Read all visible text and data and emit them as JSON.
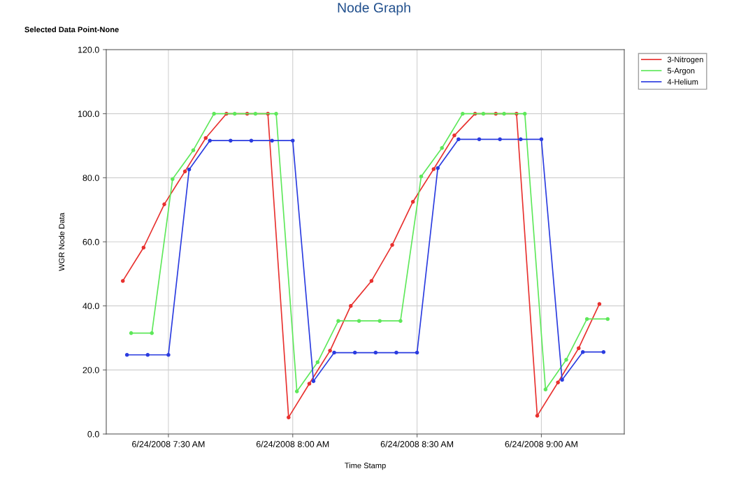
{
  "chart_data": {
    "type": "line",
    "title": "Node Graph",
    "annotations": [
      "Selected Data Point-None"
    ],
    "xlabel": "Time Stamp",
    "ylabel": "WGR Node Data",
    "xlim": [
      "2008-06-24T07:15",
      "2008-06-24T09:20"
    ],
    "xticks": [
      {
        "value": "2008-06-24T07:30",
        "label": "6/24/2008 7:30 AM"
      },
      {
        "value": "2008-06-24T08:00",
        "label": "6/24/2008 8:00 AM"
      },
      {
        "value": "2008-06-24T08:30",
        "label": "6/24/2008 8:30 AM"
      },
      {
        "value": "2008-06-24T09:00",
        "label": "6/24/2008 9:00 AM"
      }
    ],
    "ylim": [
      0,
      120
    ],
    "yticks": [
      {
        "value": 0,
        "label": "0.0"
      },
      {
        "value": 20,
        "label": "20.0"
      },
      {
        "value": 40,
        "label": "40.0"
      },
      {
        "value": 60,
        "label": "60.0"
      },
      {
        "value": 80,
        "label": "80.0"
      },
      {
        "value": 100,
        "label": "100.0"
      },
      {
        "value": 120,
        "label": "120.0"
      }
    ],
    "grid": true,
    "legend": "top right",
    "marker": "circle",
    "line_style": "solid",
    "series": [
      {
        "name": "3-Nitrogen",
        "color": "#e8312f",
        "x": [
          "2008-06-24T07:19",
          "2008-06-24T07:24",
          "2008-06-24T07:29",
          "2008-06-24T07:34",
          "2008-06-24T07:39",
          "2008-06-24T07:44",
          "2008-06-24T07:49",
          "2008-06-24T07:54",
          "2008-06-24T07:59",
          "2008-06-24T08:04",
          "2008-06-24T08:09",
          "2008-06-24T08:14",
          "2008-06-24T08:19",
          "2008-06-24T08:24",
          "2008-06-24T08:29",
          "2008-06-24T08:34",
          "2008-06-24T08:39",
          "2008-06-24T08:44",
          "2008-06-24T08:49",
          "2008-06-24T08:54",
          "2008-06-24T08:59",
          "2008-06-24T09:04",
          "2008-06-24T09:09",
          "2008-06-24T09:14"
        ],
        "values": [
          47.8,
          58.2,
          71.7,
          82,
          92.4,
          100,
          100,
          100,
          5.2,
          15.7,
          26,
          40,
          47.8,
          59,
          72.5,
          82.7,
          93.2,
          100,
          100,
          100,
          5.7,
          16.1,
          26.8,
          40.6
        ]
      },
      {
        "name": "5-Argon",
        "color": "#5ee85a",
        "x": [
          "2008-06-24T07:21",
          "2008-06-24T07:26",
          "2008-06-24T07:31",
          "2008-06-24T07:36",
          "2008-06-24T07:41",
          "2008-06-24T07:46",
          "2008-06-24T07:51",
          "2008-06-24T07:56",
          "2008-06-24T08:01",
          "2008-06-24T08:06",
          "2008-06-24T08:11",
          "2008-06-24T08:16",
          "2008-06-24T08:21",
          "2008-06-24T08:26",
          "2008-06-24T08:31",
          "2008-06-24T08:36",
          "2008-06-24T08:41",
          "2008-06-24T08:46",
          "2008-06-24T08:51",
          "2008-06-24T08:56",
          "2008-06-24T09:01",
          "2008-06-24T09:06",
          "2008-06-24T09:11",
          "2008-06-24T09:16"
        ],
        "values": [
          31.5,
          31.5,
          79.6,
          88.6,
          100,
          100,
          100,
          100,
          13.3,
          22.4,
          35.3,
          35.3,
          35.3,
          35.3,
          80.4,
          89.3,
          100,
          100,
          100,
          100,
          13.9,
          23.2,
          35.9,
          35.9
        ]
      },
      {
        "name": "4-Helium",
        "color": "#2b3ce0",
        "x": [
          "2008-06-24T07:20",
          "2008-06-24T07:25",
          "2008-06-24T07:30",
          "2008-06-24T07:35",
          "2008-06-24T07:40",
          "2008-06-24T07:45",
          "2008-06-24T07:50",
          "2008-06-24T07:55",
          "2008-06-24T08:00",
          "2008-06-24T08:05",
          "2008-06-24T08:10",
          "2008-06-24T08:15",
          "2008-06-24T08:20",
          "2008-06-24T08:25",
          "2008-06-24T08:30",
          "2008-06-24T08:35",
          "2008-06-24T08:40",
          "2008-06-24T08:45",
          "2008-06-24T08:50",
          "2008-06-24T08:55",
          "2008-06-24T09:00",
          "2008-06-24T09:05",
          "2008-06-24T09:10",
          "2008-06-24T09:15"
        ],
        "values": [
          24.7,
          24.7,
          24.7,
          82.6,
          91.6,
          91.6,
          91.6,
          91.6,
          91.6,
          16.5,
          25.4,
          25.4,
          25.4,
          25.4,
          25.4,
          83,
          92,
          92,
          92,
          92,
          92,
          16.9,
          25.6,
          25.6
        ]
      }
    ]
  }
}
